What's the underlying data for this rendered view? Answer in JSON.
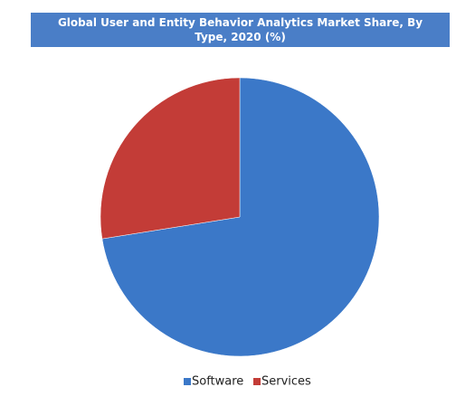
{
  "chart_data": {
    "type": "pie",
    "title": "Global User and Entity Behavior Analytics Market Share, By Type, 2020 (%)",
    "categories": [
      "Software",
      "Services"
    ],
    "values": [
      72.5,
      27.5
    ],
    "colors": [
      "#3b78c8",
      "#c33c37"
    ]
  }
}
